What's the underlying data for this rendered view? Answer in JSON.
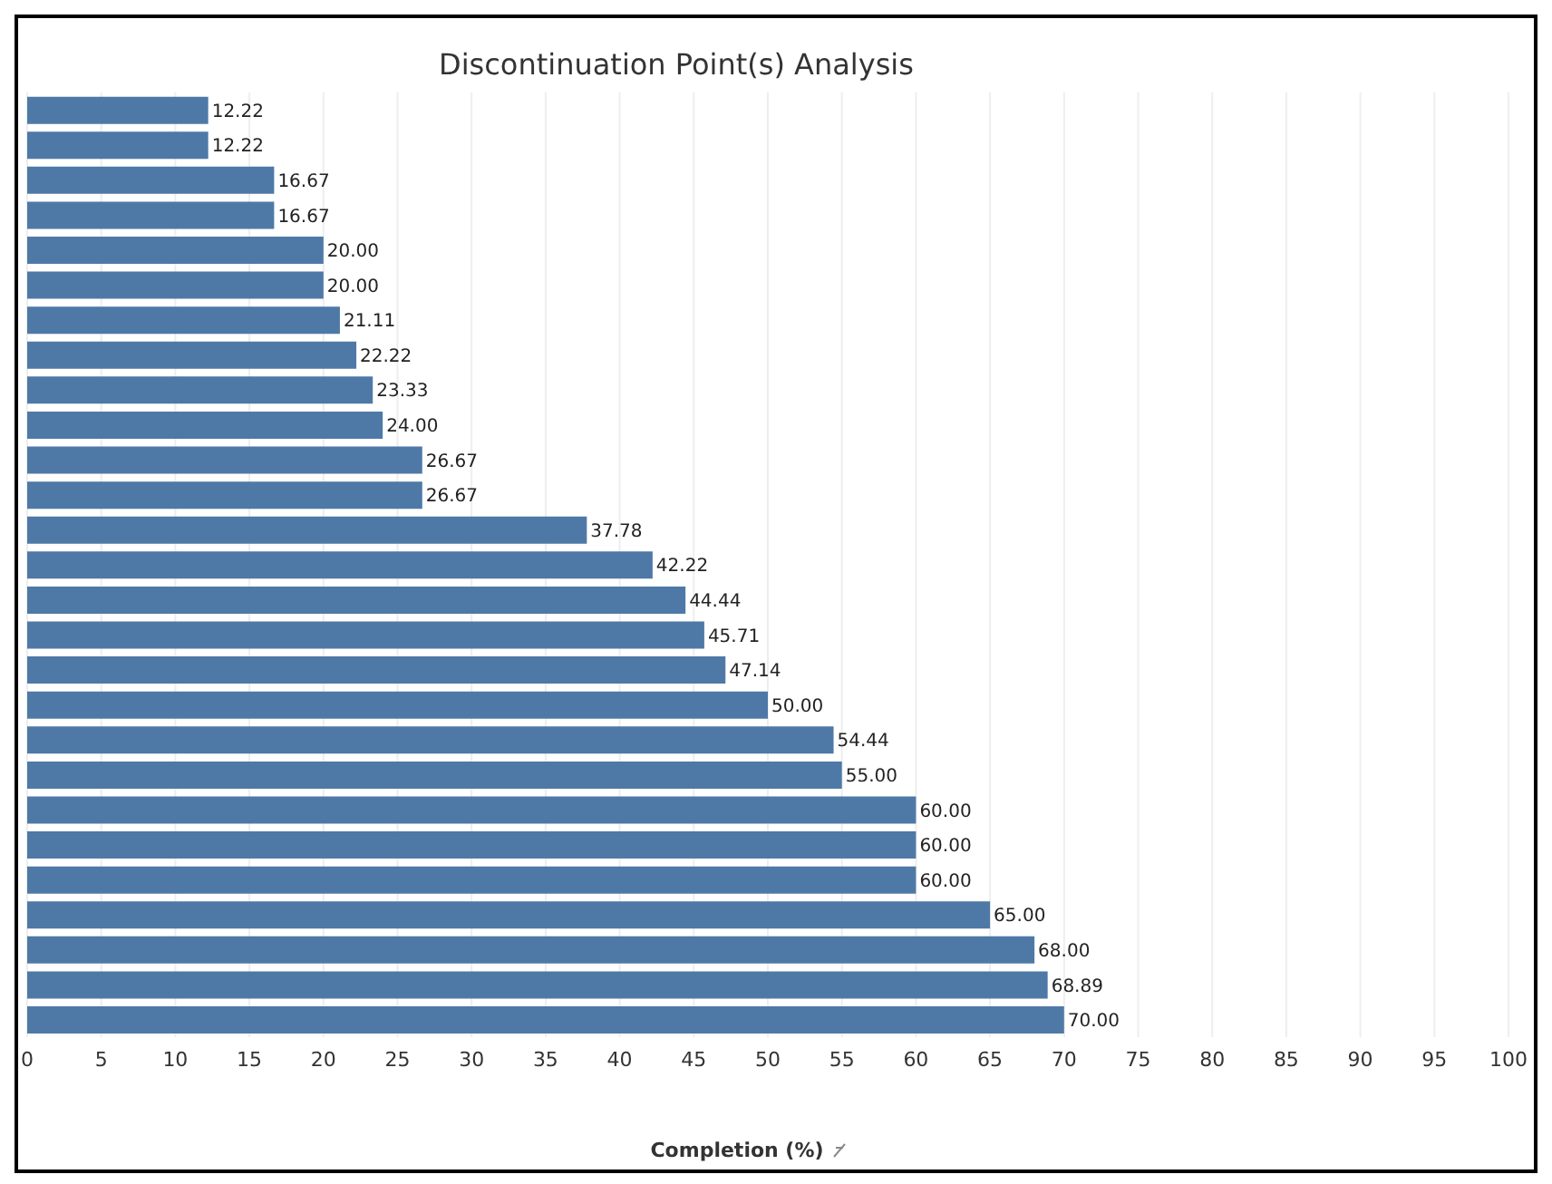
{
  "chart_data": {
    "type": "bar",
    "orientation": "horizontal",
    "title": "Discontinuation Point(s) Analysis",
    "xlabel": "Completion (%)",
    "categories": [
      null,
      null,
      null,
      null,
      null,
      null,
      null,
      null,
      null,
      null,
      null,
      null,
      null,
      null,
      null,
      null,
      null,
      null,
      null,
      null,
      null,
      null,
      null,
      null,
      null,
      null,
      null
    ],
    "values": [
      12.22,
      12.22,
      16.67,
      16.67,
      20.0,
      20.0,
      21.11,
      22.22,
      23.33,
      24.0,
      26.67,
      26.67,
      37.78,
      42.22,
      44.44,
      45.71,
      47.14,
      50.0,
      54.44,
      55.0,
      60.0,
      60.0,
      60.0,
      65.0,
      68.0,
      68.89,
      70.0
    ],
    "value_labels": [
      "12.22",
      "12.22",
      "16.67",
      "16.67",
      "20.00",
      "20.00",
      "21.11",
      "22.22",
      "23.33",
      "24.00",
      "26.67",
      "26.67",
      "37.78",
      "42.22",
      "44.44",
      "45.71",
      "47.14",
      "50.00",
      "54.44",
      "55.00",
      "60.00",
      "60.00",
      "60.00",
      "65.00",
      "68.00",
      "68.89",
      "70.00"
    ],
    "color": "#4e79a7",
    "xlim": [
      0,
      100
    ],
    "xticks": [
      0,
      5,
      10,
      15,
      20,
      25,
      30,
      35,
      40,
      45,
      50,
      55,
      60,
      65,
      70,
      75,
      80,
      85,
      90,
      95,
      100
    ],
    "grid": "x"
  }
}
